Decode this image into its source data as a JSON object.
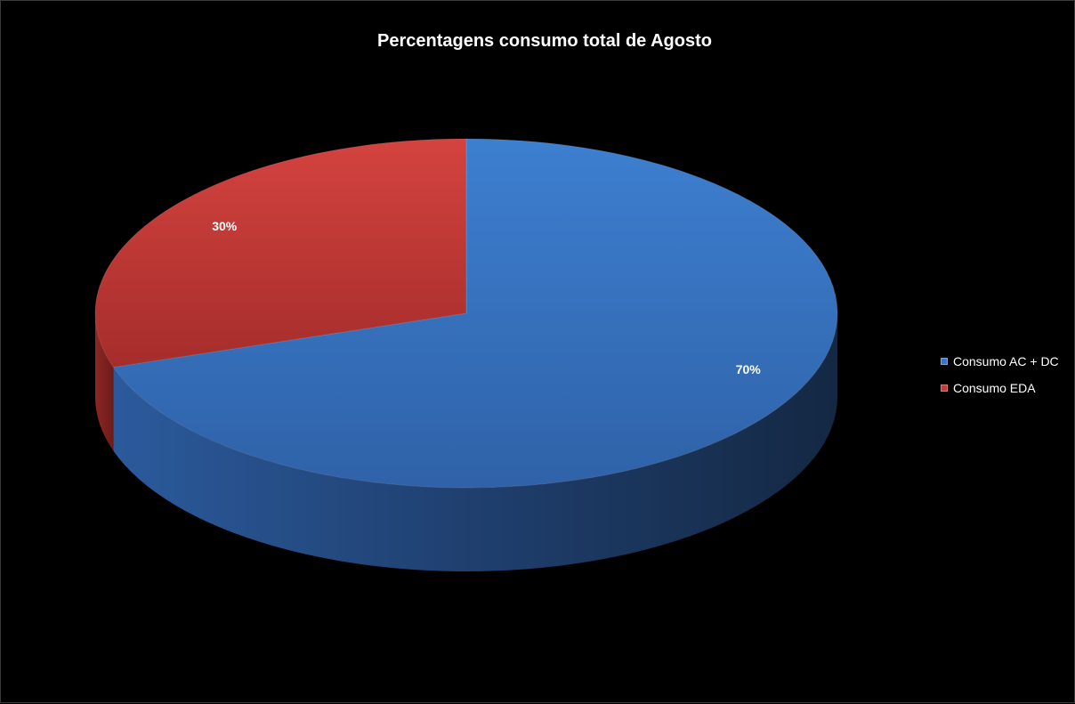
{
  "chart_data": {
    "type": "pie",
    "title": "Percentagens consumo total de Agosto",
    "categories": [
      "Consumo AC + DC",
      "Consumo EDA"
    ],
    "values": [
      70,
      30
    ],
    "data_labels": [
      "70%",
      "30%"
    ],
    "colors": [
      "#3a74c4",
      "#c43b38"
    ],
    "legend_position": "right",
    "three_d": true
  }
}
